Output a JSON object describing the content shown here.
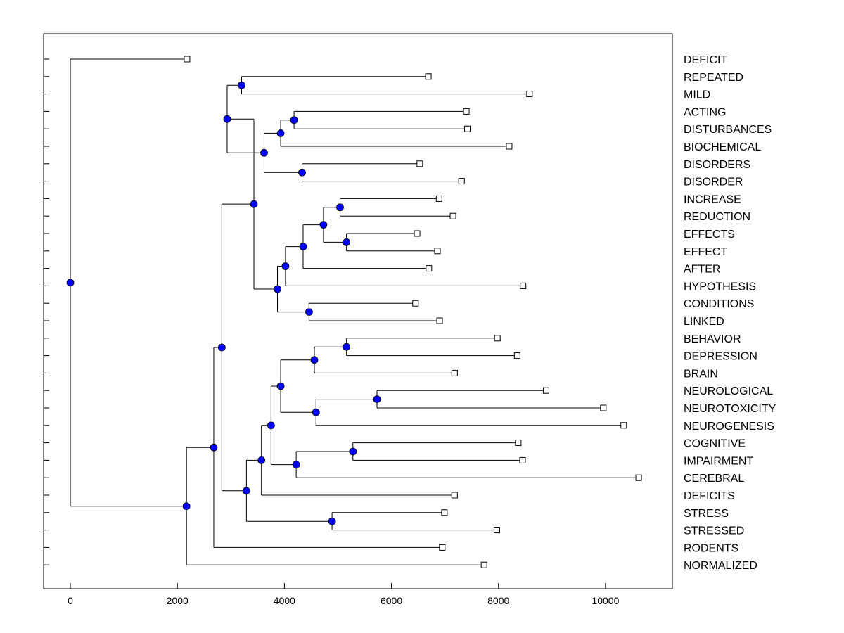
{
  "chart_data": {
    "type": "dendrogram",
    "title": "",
    "xlabel": "",
    "ylabel": "",
    "xlim": [
      -500,
      11250
    ],
    "xticks": [
      0,
      2000,
      4000,
      6000,
      8000,
      10000
    ],
    "grid": false,
    "colors": {
      "node": "#0000ff",
      "line": "#000000",
      "leaf": "#ffffff"
    },
    "leaves": [
      {
        "label": "DEFICIT",
        "x": 2180
      },
      {
        "label": "REPEATED",
        "x": 6690
      },
      {
        "label": "MILD",
        "x": 8580
      },
      {
        "label": "ACTING",
        "x": 7400
      },
      {
        "label": "DISTURBANCES",
        "x": 7420
      },
      {
        "label": "BIOCHEMICAL",
        "x": 8200
      },
      {
        "label": "DISORDERS",
        "x": 6530
      },
      {
        "label": "DISORDER",
        "x": 7310
      },
      {
        "label": "INCREASE",
        "x": 6890
      },
      {
        "label": "REDUCTION",
        "x": 7150
      },
      {
        "label": "EFFECTS",
        "x": 6480
      },
      {
        "label": "EFFECT",
        "x": 6860
      },
      {
        "label": "AFTER",
        "x": 6700
      },
      {
        "label": "HYPOTHESIS",
        "x": 8460
      },
      {
        "label": "CONDITIONS",
        "x": 6450
      },
      {
        "label": "LINKED",
        "x": 6900
      },
      {
        "label": "BEHAVIOR",
        "x": 7980
      },
      {
        "label": "DEPRESSION",
        "x": 8350
      },
      {
        "label": "BRAIN",
        "x": 7180
      },
      {
        "label": "NEUROLOGICAL",
        "x": 8890
      },
      {
        "label": "NEUROTOXICITY",
        "x": 9960
      },
      {
        "label": "NEUROGENESIS",
        "x": 10340
      },
      {
        "label": "COGNITIVE",
        "x": 8370
      },
      {
        "label": "IMPAIRMENT",
        "x": 8450
      },
      {
        "label": "CEREBRAL",
        "x": 10620
      },
      {
        "label": "DEFICITS",
        "x": 7180
      },
      {
        "label": "STRESS",
        "x": 6990
      },
      {
        "label": "STRESSED",
        "x": 7970
      },
      {
        "label": "RODENTS",
        "x": 6950
      },
      {
        "label": "NORMALIZED",
        "x": 7730
      }
    ],
    "merges": [
      {
        "id": "n_rep_mild",
        "x": 3200,
        "children": [
          "REPEATED",
          "MILD"
        ]
      },
      {
        "id": "n_act_dist",
        "x": 4180,
        "children": [
          "ACTING",
          "DISTURBANCES"
        ]
      },
      {
        "id": "n_ad_bio",
        "x": 3930,
        "children": [
          "n_act_dist",
          "BIOCHEMICAL"
        ]
      },
      {
        "id": "n_disorders",
        "x": 4330,
        "children": [
          "DISORDERS",
          "DISORDER"
        ]
      },
      {
        "id": "n_group_dis",
        "x": 3620,
        "children": [
          "n_ad_bio",
          "n_disorders"
        ]
      },
      {
        "id": "n_upper_a",
        "x": 2930,
        "children": [
          "n_rep_mild",
          "n_group_dis"
        ]
      },
      {
        "id": "n_inc_red",
        "x": 5040,
        "children": [
          "INCREASE",
          "REDUCTION"
        ]
      },
      {
        "id": "n_effects",
        "x": 5160,
        "children": [
          "EFFECTS",
          "EFFECT"
        ]
      },
      {
        "id": "n_ir_eff",
        "x": 4730,
        "children": [
          "n_inc_red",
          "n_effects"
        ]
      },
      {
        "id": "n_after",
        "x": 4350,
        "children": [
          "n_ir_eff",
          "AFTER"
        ]
      },
      {
        "id": "n_hypo",
        "x": 4020,
        "children": [
          "n_after",
          "HYPOTHESIS"
        ]
      },
      {
        "id": "n_cond_link",
        "x": 4460,
        "children": [
          "CONDITIONS",
          "LINKED"
        ]
      },
      {
        "id": "n_mid",
        "x": 3870,
        "children": [
          "n_hypo",
          "n_cond_link"
        ]
      },
      {
        "id": "n_upper",
        "x": 3430,
        "children": [
          "n_upper_a",
          "n_mid"
        ]
      },
      {
        "id": "n_beh_dep",
        "x": 5160,
        "children": [
          "BEHAVIOR",
          "DEPRESSION"
        ]
      },
      {
        "id": "n_brain",
        "x": 4560,
        "children": [
          "n_beh_dep",
          "BRAIN"
        ]
      },
      {
        "id": "n_neuro_tox",
        "x": 5730,
        "children": [
          "NEUROLOGICAL",
          "NEUROTOXICITY"
        ]
      },
      {
        "id": "n_neuro_gen",
        "x": 4590,
        "children": [
          "n_neuro_tox",
          "NEUROGENESIS"
        ]
      },
      {
        "id": "n_neuro",
        "x": 3930,
        "children": [
          "n_brain",
          "n_neuro_gen"
        ]
      },
      {
        "id": "n_cog_imp",
        "x": 5280,
        "children": [
          "COGNITIVE",
          "IMPAIRMENT"
        ]
      },
      {
        "id": "n_cerebral",
        "x": 4220,
        "children": [
          "n_cog_imp",
          "CEREBRAL"
        ]
      },
      {
        "id": "n_neuro_cer",
        "x": 3750,
        "children": [
          "n_neuro",
          "n_cerebral"
        ]
      },
      {
        "id": "n_deficits",
        "x": 3570,
        "children": [
          "n_neuro_cer",
          "DEFICITS"
        ]
      },
      {
        "id": "n_stress",
        "x": 4890,
        "children": [
          "STRESS",
          "STRESSED"
        ]
      },
      {
        "id": "n_lower",
        "x": 3290,
        "children": [
          "n_deficits",
          "n_stress"
        ]
      },
      {
        "id": "n_big",
        "x": 2830,
        "children": [
          "n_upper",
          "n_lower"
        ]
      },
      {
        "id": "n_rodents",
        "x": 2680,
        "children": [
          "n_big",
          "RODENTS"
        ]
      },
      {
        "id": "n_normalized",
        "x": 2170,
        "children": [
          "n_rodents",
          "NORMALIZED"
        ]
      },
      {
        "id": "n_root",
        "x": 0,
        "children": [
          "DEFICIT",
          "n_normalized"
        ]
      }
    ]
  }
}
